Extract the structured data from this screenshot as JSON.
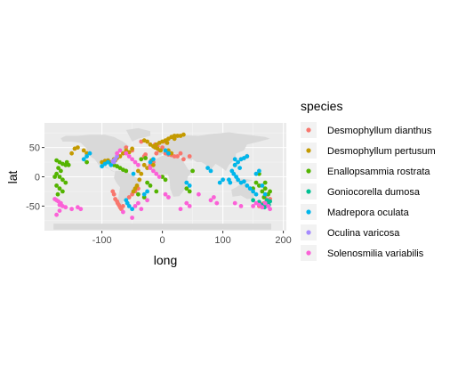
{
  "chart_data": {
    "type": "scatter",
    "xlabel": "long",
    "ylabel": "lat",
    "xlim": [
      -195,
      205
    ],
    "ylim": [
      -92,
      92
    ],
    "x_ticks": [
      -100,
      0,
      100,
      200
    ],
    "x_tick_labels": [
      "-100",
      "0",
      "100",
      "200"
    ],
    "y_ticks": [
      -50,
      0,
      50
    ],
    "y_tick_labels": [
      "-50",
      "0",
      "50"
    ],
    "grid": true,
    "background": "world map outline in light grey",
    "legend": {
      "title": "species",
      "placement": "right"
    },
    "series": [
      {
        "name": "Desmophyllum dianthus",
        "color": "#F8766D",
        "points": [
          [
            -75,
            -42
          ],
          [
            -72,
            -48
          ],
          [
            -70,
            -52
          ],
          [
            -68,
            -55
          ],
          [
            -65,
            -50
          ],
          [
            -78,
            -38
          ],
          [
            -74,
            -45
          ],
          [
            -80,
            -30
          ],
          [
            -82,
            -25
          ],
          [
            -10,
            40
          ],
          [
            -5,
            45
          ],
          [
            5,
            40
          ],
          [
            10,
            38
          ],
          [
            15,
            37
          ],
          [
            20,
            35
          ],
          [
            0,
            50
          ],
          [
            -8,
            52
          ],
          [
            -12,
            55
          ],
          [
            25,
            35
          ],
          [
            35,
            30
          ],
          [
            45,
            35
          ],
          [
            -45,
            -25
          ],
          [
            -40,
            -20
          ],
          [
            175,
            -40
          ],
          [
            172,
            -42
          ],
          [
            168,
            -45
          ],
          [
            178,
            -38
          ],
          [
            170,
            -35
          ],
          [
            165,
            -47
          ],
          [
            160,
            -50
          ],
          [
            -30,
            35
          ],
          [
            -28,
            38
          ],
          [
            -60,
            50
          ],
          [
            -50,
            45
          ],
          [
            130,
            30
          ],
          [
            140,
            35
          ],
          [
            -20,
            20
          ],
          [
            -15,
            25
          ],
          [
            30,
            40
          ],
          [
            -35,
            60
          ],
          [
            5,
            60
          ],
          [
            -55,
            -35
          ],
          [
            -50,
            -30
          ],
          [
            -58,
            -45
          ]
        ]
      },
      {
        "name": "Desmophyllum pertusum",
        "color": "#C49A00",
        "points": [
          [
            -10,
            55
          ],
          [
            -5,
            58
          ],
          [
            0,
            60
          ],
          [
            5,
            62
          ],
          [
            10,
            65
          ],
          [
            15,
            68
          ],
          [
            20,
            70
          ],
          [
            25,
            70
          ],
          [
            -15,
            52
          ],
          [
            -12,
            50
          ],
          [
            -8,
            48
          ],
          [
            -3,
            45
          ],
          [
            -20,
            55
          ],
          [
            -25,
            60
          ],
          [
            -30,
            62
          ],
          [
            -80,
            30
          ],
          [
            -78,
            28
          ],
          [
            -75,
            32
          ],
          [
            -70,
            35
          ],
          [
            -85,
            25
          ],
          [
            -90,
            28
          ],
          [
            -95,
            27
          ],
          [
            -60,
            45
          ],
          [
            -55,
            42
          ],
          [
            -50,
            48
          ],
          [
            -65,
            40
          ],
          [
            -40,
            10
          ],
          [
            -35,
            5
          ],
          [
            -38,
            -5
          ],
          [
            -42,
            -15
          ],
          [
            -45,
            -20
          ],
          [
            -48,
            -25
          ],
          [
            -30,
            20
          ],
          [
            -25,
            15
          ],
          [
            10,
            45
          ],
          [
            15,
            40
          ],
          [
            -145,
            48
          ],
          [
            -140,
            50
          ],
          [
            -130,
            45
          ],
          [
            -150,
            40
          ],
          [
            -125,
            40
          ],
          [
            30,
            70
          ],
          [
            35,
            72
          ],
          [
            20,
            65
          ],
          [
            8,
            58
          ],
          [
            -18,
            28
          ],
          [
            -15,
            20
          ],
          [
            -100,
            25
          ]
        ]
      },
      {
        "name": "Enallopsammia rostrata",
        "color": "#53B400",
        "points": [
          [
            -175,
            28
          ],
          [
            -170,
            25
          ],
          [
            -165,
            22
          ],
          [
            -160,
            20
          ],
          [
            -158,
            25
          ],
          [
            -155,
            20
          ],
          [
            -172,
            15
          ],
          [
            -168,
            10
          ],
          [
            -175,
            5
          ],
          [
            -170,
            0
          ],
          [
            -165,
            -5
          ],
          [
            -160,
            -10
          ],
          [
            -175,
            -15
          ],
          [
            -170,
            -20
          ],
          [
            -165,
            -25
          ],
          [
            -178,
            0
          ],
          [
            -173,
            -30
          ],
          [
            -90,
            25
          ],
          [
            -85,
            22
          ],
          [
            -80,
            20
          ],
          [
            -75,
            18
          ],
          [
            -70,
            15
          ],
          [
            -65,
            12
          ],
          [
            -60,
            10
          ],
          [
            170,
            -20
          ],
          [
            165,
            -25
          ],
          [
            160,
            -15
          ],
          [
            155,
            -10
          ],
          [
            175,
            -30
          ],
          [
            168,
            -35
          ],
          [
            150,
            -20
          ],
          [
            178,
            -25
          ],
          [
            -25,
            -10
          ],
          [
            -20,
            -15
          ],
          [
            0,
            0
          ],
          [
            5,
            -5
          ],
          [
            40,
            -20
          ],
          [
            45,
            -25
          ],
          [
            -35,
            30
          ],
          [
            -28,
            32
          ],
          [
            120,
            20
          ],
          [
            160,
            5
          ],
          [
            -40,
            -30
          ],
          [
            -30,
            -35
          ],
          [
            170,
            -10
          ],
          [
            -10,
            -25
          ],
          [
            50,
            10
          ],
          [
            -125,
            25
          ]
        ]
      },
      {
        "name": "Goniocorella dumosa",
        "color": "#00C094",
        "points": [
          [
            170,
            -45
          ],
          [
            172,
            -47
          ],
          [
            175,
            -44
          ],
          [
            168,
            -50
          ],
          [
            165,
            -48
          ],
          [
            178,
            -42
          ],
          [
            173,
            -40
          ],
          [
            160,
            -43
          ],
          [
            176,
            -48
          ],
          [
            169,
            -52
          ],
          [
            150,
            -40
          ]
        ]
      },
      {
        "name": "Madrepora oculata",
        "color": "#00B6EB",
        "points": [
          [
            130,
            30
          ],
          [
            135,
            32
          ],
          [
            140,
            35
          ],
          [
            125,
            25
          ],
          [
            120,
            20
          ],
          [
            128,
            15
          ],
          [
            115,
            10
          ],
          [
            118,
            5
          ],
          [
            122,
            0
          ],
          [
            125,
            -5
          ],
          [
            130,
            -10
          ],
          [
            135,
            -8
          ],
          [
            110,
            -5
          ],
          [
            112,
            -10
          ],
          [
            140,
            -15
          ],
          [
            145,
            -20
          ],
          [
            150,
            -25
          ],
          [
            155,
            -30
          ],
          [
            160,
            10
          ],
          [
            -90,
            25
          ],
          [
            -85,
            20
          ],
          [
            -95,
            22
          ],
          [
            -100,
            18
          ],
          [
            -80,
            28
          ],
          [
            -60,
            -40
          ],
          [
            -58,
            -45
          ],
          [
            -55,
            -50
          ],
          [
            -50,
            -55
          ],
          [
            -15,
            30
          ],
          [
            -20,
            25
          ],
          [
            10,
            40
          ],
          [
            5,
            45
          ],
          [
            -120,
            40
          ],
          [
            -125,
            35
          ],
          [
            -130,
            30
          ],
          [
            100,
            -5
          ],
          [
            95,
            -10
          ],
          [
            80,
            10
          ],
          [
            75,
            15
          ],
          [
            155,
            5
          ],
          [
            165,
            -15
          ],
          [
            170,
            -30
          ],
          [
            -30,
            -30
          ],
          [
            -25,
            -25
          ],
          [
            -48,
            5
          ],
          [
            40,
            -10
          ],
          [
            45,
            -15
          ],
          [
            120,
            30
          ]
        ]
      },
      {
        "name": "Oculina varicosa",
        "color": "#A58AFF",
        "points": [
          [
            -80,
            28
          ],
          [
            -81,
            27
          ],
          [
            -79,
            29
          ],
          [
            -78,
            30
          ],
          [
            -82,
            26
          ],
          [
            -80,
            25
          ],
          [
            -75,
            35
          ]
        ]
      },
      {
        "name": "Solenosmilia variabilis",
        "color": "#FB61D7",
        "points": [
          [
            -175,
            -40
          ],
          [
            -172,
            -42
          ],
          [
            -168,
            -45
          ],
          [
            -170,
            -48
          ],
          [
            -165,
            -50
          ],
          [
            -178,
            -38
          ],
          [
            -160,
            -52
          ],
          [
            -150,
            -55
          ],
          [
            -140,
            -52
          ],
          [
            -135,
            -55
          ],
          [
            -175,
            -65
          ],
          [
            -170,
            -58
          ],
          [
            -60,
            40
          ],
          [
            -55,
            35
          ],
          [
            -50,
            30
          ],
          [
            -45,
            25
          ],
          [
            -40,
            20
          ],
          [
            -70,
            45
          ],
          [
            -75,
            40
          ],
          [
            -20,
            15
          ],
          [
            -15,
            10
          ],
          [
            -10,
            5
          ],
          [
            -5,
            0
          ],
          [
            170,
            -45
          ],
          [
            175,
            -50
          ],
          [
            165,
            -52
          ],
          [
            160,
            -48
          ],
          [
            155,
            -45
          ],
          [
            178,
            -55
          ],
          [
            150,
            -50
          ],
          [
            80,
            -40
          ],
          [
            85,
            -35
          ],
          [
            90,
            -45
          ],
          [
            120,
            -45
          ],
          [
            130,
            -50
          ],
          [
            -45,
            -50
          ],
          [
            -40,
            -45
          ],
          [
            -35,
            -55
          ],
          [
            -50,
            -70
          ],
          [
            -65,
            -60
          ],
          [
            5,
            -30
          ],
          [
            10,
            -35
          ],
          [
            40,
            -45
          ],
          [
            45,
            -50
          ],
          [
            -25,
            -40
          ],
          [
            60,
            -30
          ],
          [
            30,
            -55
          ]
        ]
      }
    ]
  }
}
